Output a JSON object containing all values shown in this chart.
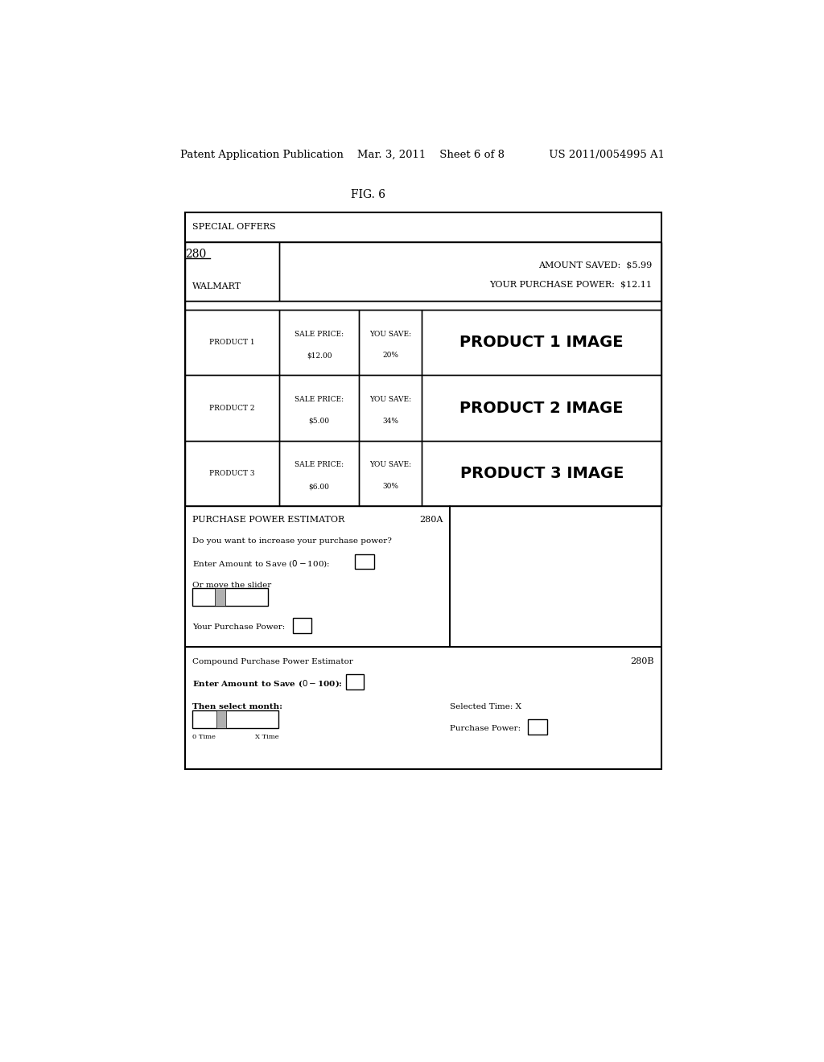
{
  "bg_color": "#ffffff",
  "header_text": "Patent Application Publication    Mar. 3, 2011    Sheet 6 of 8             US 2011/0054995 A1",
  "fig_label": "FIG. 6",
  "label_280": "280",
  "diagram": {
    "special_offers_label": "SPECIAL OFFERS",
    "walmart_label": "WALMART",
    "amount_saved": "AMOUNT SAVED:  $5.99",
    "purchase_power_top": "YOUR PURCHASE POWER:  $12.11",
    "products": [
      {
        "name": "PRODUCT 1",
        "sale_price": "SALE PRICE:",
        "price": "$12.00",
        "you_save": "YOU SAVE:",
        "pct": "20%",
        "image": "PRODUCT 1 IMAGE"
      },
      {
        "name": "PRODUCT 2",
        "sale_price": "SALE PRICE:",
        "price": "$5.00",
        "you_save": "YOU SAVE:",
        "pct": "34%",
        "image": "PRODUCT 2 IMAGE"
      },
      {
        "name": "PRODUCT 3",
        "sale_price": "SALE PRICE:",
        "price": "$6.00",
        "you_save": "YOU SAVE:",
        "pct": "30%",
        "image": "PRODUCT 3 IMAGE"
      }
    ],
    "ppe_label": "PURCHASE POWER ESTIMATOR",
    "ppe_ref": "280A",
    "ppe_q": "Do you want to increase your purchase power?",
    "ppe_enter": "Enter Amount to Save ($0 - $100):",
    "ppe_slider_label": "Or move the slider",
    "ppe_power_label": "Your Purchase Power:",
    "cppe_label": "Compound Purchase Power Estimator",
    "cppe_ref": "280B",
    "cppe_enter": "Enter Amount to Save ($0 - $100):",
    "cppe_month": "Then select month:",
    "cppe_time_left": "0 Time",
    "cppe_time_right": "X Time",
    "cppe_selected": "Selected Time: X",
    "cppe_power": "Purchase Power:"
  }
}
